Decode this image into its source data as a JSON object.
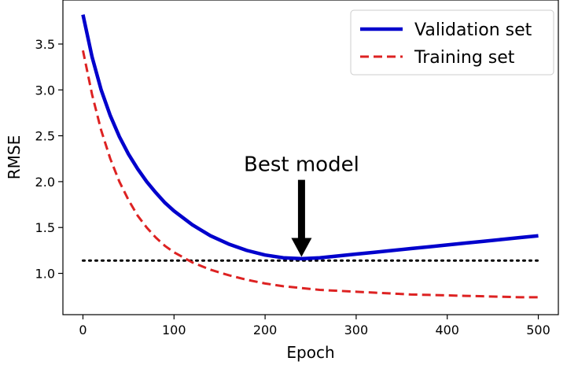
{
  "chart_data": {
    "type": "line",
    "title": "",
    "xlabel": "Epoch",
    "ylabel": "RMSE",
    "xlim": [
      -22,
      522
    ],
    "ylim": [
      0.55,
      3.98
    ],
    "xticks": [
      0,
      100,
      200,
      300,
      400,
      500
    ],
    "yticks": [
      1.0,
      1.5,
      2.0,
      2.5,
      3.0,
      3.5
    ],
    "xtick_labels": [
      "0",
      "100",
      "200",
      "300",
      "400",
      "500"
    ],
    "ytick_labels": [
      "1.0",
      "1.5",
      "2.0",
      "2.5",
      "3.0",
      "3.5"
    ],
    "grid": false,
    "legend_position": "top-right",
    "series": [
      {
        "name": "Validation set",
        "style": "solid",
        "color": "#0000cc",
        "x": [
          0,
          10,
          20,
          30,
          40,
          50,
          60,
          70,
          80,
          90,
          100,
          120,
          140,
          160,
          180,
          200,
          220,
          240,
          260,
          280,
          300,
          320,
          340,
          360,
          380,
          400,
          420,
          440,
          460,
          480,
          500
        ],
        "y": [
          3.82,
          3.36,
          3.0,
          2.72,
          2.49,
          2.3,
          2.14,
          2.0,
          1.88,
          1.77,
          1.68,
          1.53,
          1.41,
          1.32,
          1.25,
          1.2,
          1.17,
          1.16,
          1.17,
          1.19,
          1.21,
          1.23,
          1.25,
          1.27,
          1.29,
          1.31,
          1.33,
          1.35,
          1.37,
          1.39,
          1.41
        ]
      },
      {
        "name": "Training set",
        "style": "dashed",
        "color": "#dd2222",
        "x": [
          0,
          10,
          20,
          30,
          40,
          50,
          60,
          70,
          80,
          90,
          100,
          120,
          140,
          160,
          180,
          200,
          220,
          240,
          260,
          280,
          300,
          320,
          340,
          360,
          380,
          400,
          420,
          440,
          460,
          480,
          500
        ],
        "y": [
          3.43,
          2.95,
          2.56,
          2.25,
          2.0,
          1.8,
          1.63,
          1.5,
          1.39,
          1.3,
          1.23,
          1.12,
          1.04,
          0.98,
          0.93,
          0.89,
          0.86,
          0.84,
          0.82,
          0.81,
          0.8,
          0.79,
          0.78,
          0.77,
          0.765,
          0.76,
          0.755,
          0.75,
          0.745,
          0.74,
          0.74
        ]
      },
      {
        "name": "",
        "style": "dotted",
        "color": "#000000",
        "x": [
          0,
          500
        ],
        "y": [
          1.14,
          1.14
        ]
      }
    ],
    "annotations": [
      {
        "text": "Best model",
        "text_x": 240,
        "text_y": 2.2,
        "arrow_from": [
          240,
          2.02
        ],
        "arrow_to": [
          240,
          1.18
        ]
      }
    ]
  }
}
